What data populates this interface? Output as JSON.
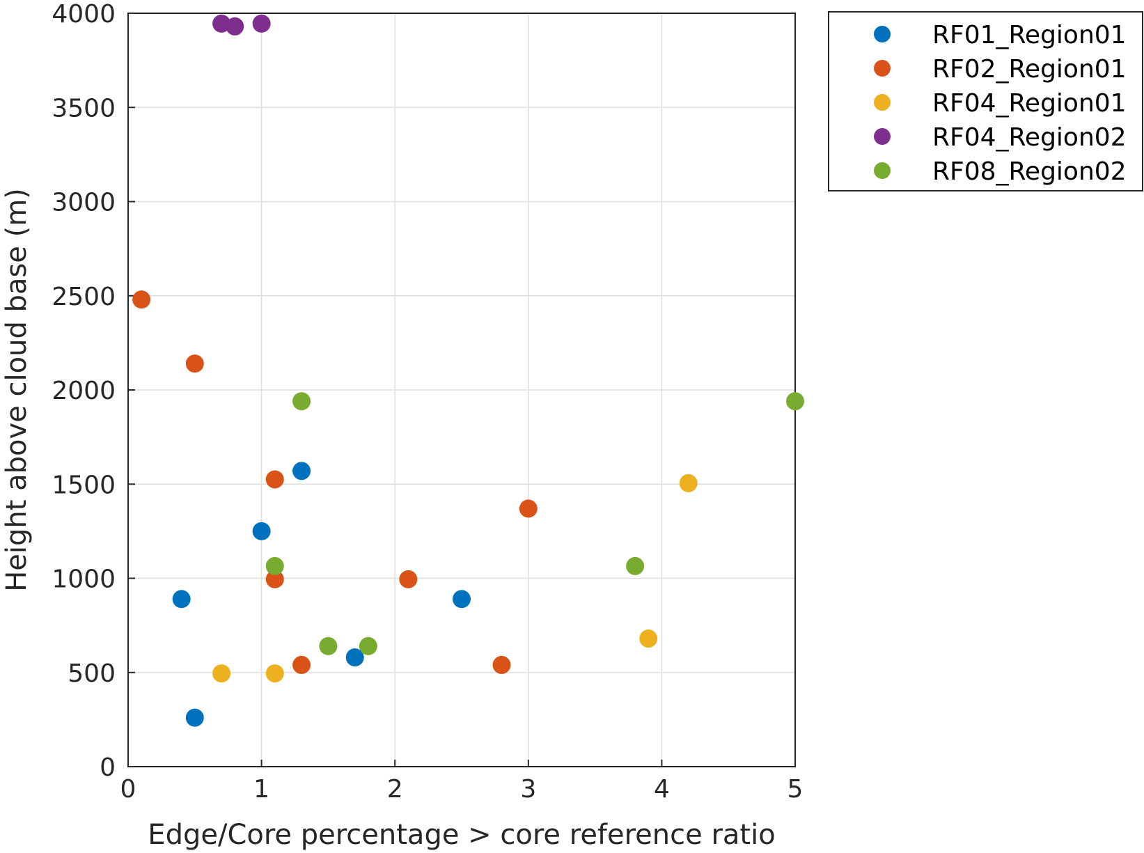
{
  "chart_data": {
    "type": "scatter",
    "title": "",
    "xlabel": "Edge/Core percentage > core reference ratio",
    "ylabel": "Height above cloud base (m)",
    "xlim": [
      0,
      5
    ],
    "ylim": [
      0,
      4000
    ],
    "x_ticks": [
      0,
      1,
      2,
      3,
      4,
      5
    ],
    "y_ticks": [
      0,
      500,
      1000,
      1500,
      2000,
      2500,
      3000,
      3500,
      4000
    ],
    "x_tick_labels": [
      "0",
      "1",
      "2",
      "3",
      "4",
      "5"
    ],
    "y_tick_labels": [
      "0",
      "500",
      "1000",
      "1500",
      "2000",
      "2500",
      "3000",
      "3500",
      "4000"
    ],
    "grid": true,
    "legend_position": "outside-top-right",
    "series": [
      {
        "name": "RF01_Region01",
        "color": "#0072BD",
        "points": [
          [
            0.4,
            890
          ],
          [
            0.5,
            260
          ],
          [
            1.0,
            1250
          ],
          [
            1.3,
            1570
          ],
          [
            1.7,
            580
          ],
          [
            2.5,
            890
          ]
        ]
      },
      {
        "name": "RF02_Region01",
        "color": "#D95319",
        "points": [
          [
            0.1,
            2480
          ],
          [
            0.5,
            2140
          ],
          [
            1.1,
            1525
          ],
          [
            1.1,
            995
          ],
          [
            1.3,
            540
          ],
          [
            2.1,
            995
          ],
          [
            2.8,
            540
          ],
          [
            3.0,
            1370
          ]
        ]
      },
      {
        "name": "RF04_Region01",
        "color": "#EDB120",
        "points": [
          [
            0.7,
            495
          ],
          [
            1.1,
            495
          ],
          [
            3.9,
            680
          ],
          [
            4.2,
            1505
          ]
        ]
      },
      {
        "name": "RF04_Region02",
        "color": "#7E2F8E",
        "points": [
          [
            0.7,
            3945
          ],
          [
            0.8,
            3930
          ],
          [
            1.0,
            3945
          ]
        ]
      },
      {
        "name": "RF08_Region02",
        "color": "#77AC30",
        "points": [
          [
            1.1,
            1065
          ],
          [
            1.3,
            1940
          ],
          [
            1.5,
            640
          ],
          [
            1.8,
            640
          ],
          [
            3.8,
            1065
          ],
          [
            5.0,
            1940
          ]
        ]
      }
    ]
  }
}
